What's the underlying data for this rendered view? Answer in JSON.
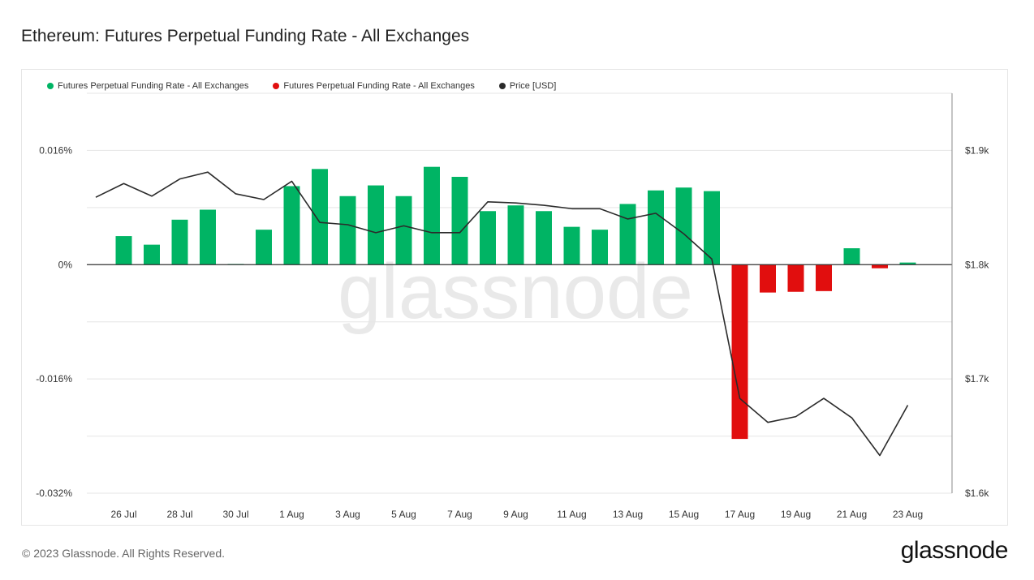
{
  "header": {
    "title": "Ethereum: Futures Perpetual Funding Rate - All Exchanges"
  },
  "footer": {
    "copyright": "© 2023 Glassnode. All Rights Reserved.",
    "brand": "glassnode"
  },
  "watermark": "glassnode",
  "colors": {
    "positive": "#00b464",
    "negative": "#e10e0e",
    "price": "#2b2b2b",
    "grid": "#e5e5e5"
  },
  "chart_data": {
    "type": "bar",
    "title": "Ethereum: Futures Perpetual Funding Rate - All Exchanges",
    "legend": [
      {
        "name": "Futures Perpetual Funding Rate - All Exchanges",
        "color": "#00b464"
      },
      {
        "name": "Futures Perpetual Funding Rate - All Exchanges",
        "color": "#e10e0e"
      },
      {
        "name": "Price [USD]",
        "color": "#2b2b2b"
      }
    ],
    "legend_position": "top-left",
    "grid": true,
    "dates": [
      "25 Jul",
      "26 Jul",
      "27 Jul",
      "28 Jul",
      "29 Jul",
      "30 Jul",
      "31 Jul",
      "1 Aug",
      "2 Aug",
      "3 Aug",
      "4 Aug",
      "5 Aug",
      "6 Aug",
      "7 Aug",
      "8 Aug",
      "9 Aug",
      "10 Aug",
      "11 Aug",
      "12 Aug",
      "13 Aug",
      "14 Aug",
      "15 Aug",
      "16 Aug",
      "17 Aug",
      "18 Aug",
      "19 Aug",
      "20 Aug",
      "21 Aug",
      "22 Aug",
      "23 Aug"
    ],
    "x_tick_labels": [
      "26 Jul",
      "28 Jul",
      "30 Jul",
      "1 Aug",
      "3 Aug",
      "5 Aug",
      "7 Aug",
      "9 Aug",
      "11 Aug",
      "13 Aug",
      "15 Aug",
      "17 Aug",
      "19 Aug",
      "21 Aug",
      "23 Aug"
    ],
    "funding_rate": [
      null,
      0.004,
      0.0028,
      0.0063,
      0.0077,
      0.0001,
      0.0049,
      0.011,
      0.0134,
      0.0096,
      0.0111,
      0.0096,
      0.0137,
      0.0123,
      0.0075,
      0.0083,
      0.0075,
      0.0053,
      0.0049,
      0.0085,
      0.0104,
      0.0108,
      0.0103,
      -0.0244,
      -0.0039,
      -0.0038,
      -0.0037,
      0.0023,
      -0.0005,
      0.0003
    ],
    "price": [
      1859,
      1871,
      1860,
      1875,
      1881,
      1862,
      1857,
      1873,
      1837,
      1835,
      1828,
      1834,
      1828,
      1828,
      1855,
      1854,
      1852,
      1849,
      1849,
      1840,
      1845,
      1827,
      1805,
      1683,
      1662,
      1667,
      1683,
      1666,
      1633,
      1677
    ],
    "y_left": {
      "ticks": [
        0.016,
        0,
        -0.016,
        -0.032
      ],
      "tick_labels": [
        "0.016%",
        "0%",
        "-0.016%",
        "-0.032%"
      ],
      "range": [
        -0.032,
        0.024
      ]
    },
    "y_right": {
      "ticks": [
        1900,
        1800,
        1700,
        1600
      ],
      "tick_labels": [
        "$1.9k",
        "$1.8k",
        "$1.7k",
        "$1.6k"
      ],
      "range": [
        1600,
        1950
      ]
    },
    "xlabel": "",
    "ylabel": ""
  }
}
